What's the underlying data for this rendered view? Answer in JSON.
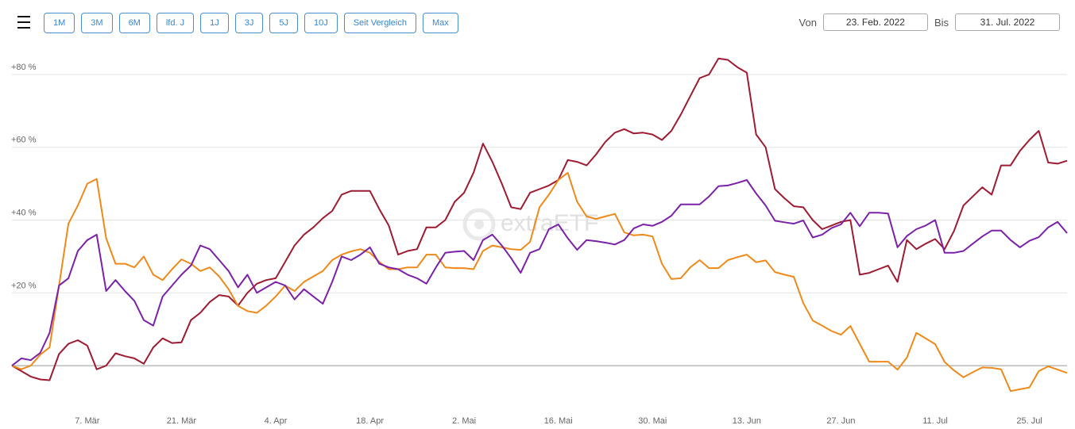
{
  "toolbar": {
    "buttons": [
      "1M",
      "3M",
      "6M",
      "lfd. J",
      "1J",
      "3J",
      "5J",
      "10J",
      "Seit Vergleich",
      "Max"
    ],
    "from_label": "Von",
    "from_value": "23. Feb. 2022",
    "to_label": "Bis",
    "to_value": "31. Jul. 2022"
  },
  "watermark": "extraETF",
  "chart_data": {
    "type": "line",
    "categories": [
      null,
      null,
      null,
      null,
      null,
      null,
      null,
      null,
      "7. Mär",
      null,
      null,
      null,
      null,
      null,
      null,
      null,
      null,
      null,
      "21. Mär",
      null,
      null,
      null,
      null,
      null,
      null,
      null,
      null,
      null,
      "4. Apr",
      null,
      null,
      null,
      null,
      null,
      null,
      null,
      null,
      null,
      "18. Apr",
      null,
      null,
      null,
      null,
      null,
      null,
      null,
      null,
      null,
      "2. Mai",
      null,
      null,
      null,
      null,
      null,
      null,
      null,
      null,
      null,
      "16. Mai",
      null,
      null,
      null,
      null,
      null,
      null,
      null,
      null,
      null,
      "30. Mai",
      null,
      null,
      null,
      null,
      null,
      null,
      null,
      null,
      null,
      "13. Jun",
      null,
      null,
      null,
      null,
      null,
      null,
      null,
      null,
      null,
      "27. Jun",
      null,
      null,
      null,
      null,
      null,
      null,
      null,
      null,
      null,
      "11. Jul",
      null,
      null,
      null,
      null,
      null,
      null,
      null,
      null,
      null,
      "25. Jul",
      null,
      null,
      null,
      null
    ],
    "series": [
      {
        "color": "#9e1b32",
        "values": [
          0,
          -1.5,
          -3,
          -3.8,
          -4,
          3.2,
          6,
          7,
          5.5,
          -1,
          0,
          3.4,
          2.6,
          2,
          0.5,
          5,
          7.5,
          6.2,
          6.4,
          12.5,
          14.5,
          17.5,
          19.4,
          19,
          16.5,
          20,
          22.5,
          23.5,
          24,
          28.5,
          33,
          36,
          38,
          40.5,
          42.5,
          47,
          48,
          48,
          48,
          43,
          38.5,
          30.5,
          31.5,
          32,
          38,
          38,
          40,
          45,
          47.5,
          53,
          61,
          56,
          50,
          43.5,
          43,
          47.5,
          48.5,
          49.5,
          51,
          56.5,
          56,
          55,
          58,
          61.5,
          64,
          65,
          63.8,
          64,
          63.5,
          62,
          64.5,
          69,
          74,
          79,
          80,
          84.4,
          84,
          82,
          80.5,
          63.5,
          60,
          48.5,
          46,
          43.8,
          43.5,
          40,
          37.5,
          38.5,
          39.5,
          40,
          25,
          25.5,
          26.5,
          27.5,
          23,
          34.5,
          32,
          33.5,
          34.8,
          32,
          37,
          44,
          46.5,
          49,
          47,
          55,
          55,
          59,
          62,
          64.5,
          55.8,
          55.5,
          56.3
        ]
      },
      {
        "color": "#ef8a1a",
        "values": [
          0,
          -1,
          0,
          3,
          5,
          22,
          39,
          44,
          50,
          51.3,
          35,
          28,
          28,
          27,
          30,
          25,
          23.5,
          26.5,
          29.2,
          28,
          26,
          27,
          24.5,
          21,
          16.4,
          15,
          14.5,
          16.5,
          19,
          22,
          20.5,
          23,
          24.5,
          26,
          29,
          30.5,
          31.4,
          32,
          31,
          28.5,
          26.5,
          26.5,
          27,
          27,
          30.5,
          30.5,
          27,
          26.8,
          26.8,
          26.5,
          31.5,
          33,
          32.5,
          32,
          31.8,
          34,
          43.5,
          47,
          51,
          53,
          45,
          41,
          40.3,
          41,
          41.7,
          36.6,
          35.8,
          36,
          35.5,
          28,
          23.8,
          24,
          27,
          29,
          26.8,
          26.8,
          29,
          29.8,
          30.5,
          28.4,
          28.9,
          25.7,
          25,
          24.4,
          17.2,
          12.4,
          11,
          9.5,
          8.5,
          10.9,
          6,
          1.1,
          1.1,
          1.1,
          -1.1,
          2.2,
          9,
          7.5,
          5.9,
          1,
          -1.3,
          -3.2,
          -1.8,
          -0.5,
          -0.6,
          -1,
          -7,
          -6.5,
          -6,
          -1.5,
          -0.2,
          -1.1,
          -2
        ]
      },
      {
        "color": "#7b22a8",
        "values": [
          0,
          2,
          1.5,
          3.5,
          9,
          22,
          24,
          31.5,
          34.5,
          36,
          20.5,
          23.5,
          20.5,
          17.8,
          12.5,
          11,
          19,
          22,
          25,
          27.5,
          33,
          32,
          29,
          26,
          21.5,
          25,
          20,
          21.5,
          23,
          22,
          18.2,
          21,
          19,
          17,
          23,
          30,
          29,
          30.5,
          32.5,
          28,
          27,
          26.5,
          25,
          24,
          22.5,
          27,
          31,
          31.3,
          31.5,
          29,
          34.5,
          36,
          33,
          29.5,
          25.5,
          31,
          32,
          37.5,
          38.8,
          35,
          31.8,
          34.5,
          34.2,
          33.8,
          33.3,
          34.5,
          37.7,
          38.8,
          38.4,
          39.5,
          41.2,
          44.3,
          44.3,
          44.3,
          46.5,
          49.3,
          49.5,
          50.2,
          51,
          47.3,
          44,
          39.8,
          39.4,
          39,
          39.9,
          35.2,
          36,
          37.8,
          38.8,
          42,
          38.3,
          42,
          42,
          41.8,
          32.5,
          35.6,
          37.5,
          38.5,
          40,
          31,
          31,
          31.5,
          33.5,
          35.5,
          37.1,
          37.1,
          34.5,
          32.5,
          34.3,
          35.3,
          38,
          39.5,
          36.4
        ]
      }
    ],
    "ylim": [
      -10,
      90
    ],
    "yticks": [
      {
        "value": 20,
        "label": "+20 %"
      },
      {
        "value": 40,
        "label": "+40 %"
      },
      {
        "value": 60,
        "label": "+60 %"
      },
      {
        "value": 80,
        "label": "+80 %"
      }
    ],
    "grid": true
  }
}
